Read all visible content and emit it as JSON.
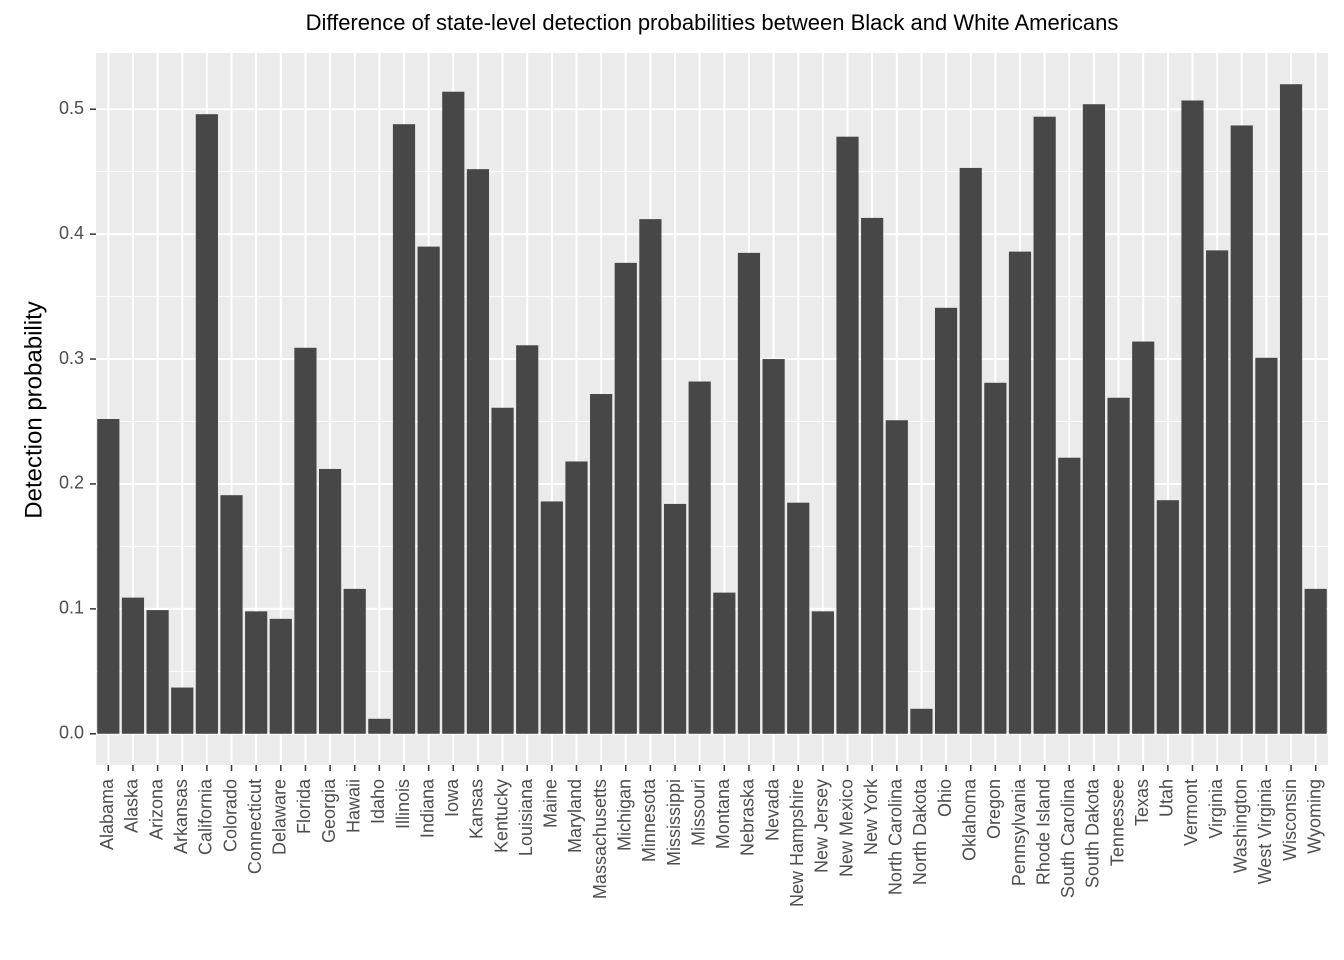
{
  "chart_data": {
    "type": "bar",
    "title": "Difference of state-level detection probabilities between Black and White Americans",
    "xlabel": "",
    "ylabel": "Detection probability",
    "ylim": [
      -0.025,
      0.545
    ],
    "yticks": [
      "0.0",
      "0.1",
      "0.2",
      "0.3",
      "0.4",
      "0.5"
    ],
    "ytick_values": [
      0.0,
      0.1,
      0.2,
      0.3,
      0.4,
      0.5
    ],
    "grid": true,
    "legend": "none",
    "categories": [
      "Alabama",
      "Alaska",
      "Arizona",
      "Arkansas",
      "California",
      "Colorado",
      "Connecticut",
      "Delaware",
      "Florida",
      "Georgia",
      "Hawaii",
      "Idaho",
      "Illinois",
      "Indiana",
      "Iowa",
      "Kansas",
      "Kentucky",
      "Louisiana",
      "Maine",
      "Maryland",
      "Massachusetts",
      "Michigan",
      "Minnesota",
      "Mississippi",
      "Missouri",
      "Montana",
      "Nebraska",
      "Nevada",
      "New Hampshire",
      "New Jersey",
      "New Mexico",
      "New York",
      "North Carolina",
      "North Dakota",
      "Ohio",
      "Oklahoma",
      "Oregon",
      "Pennsylvania",
      "Rhode Island",
      "South Carolina",
      "South Dakota",
      "Tennessee",
      "Texas",
      "Utah",
      "Vermont",
      "Virginia",
      "Washington",
      "West Virginia",
      "Wisconsin",
      "Wyoming"
    ],
    "values": [
      0.252,
      0.109,
      0.099,
      0.037,
      0.496,
      0.191,
      0.098,
      0.092,
      0.309,
      0.212,
      0.116,
      0.012,
      0.488,
      0.39,
      0.514,
      0.452,
      0.261,
      0.311,
      0.186,
      0.218,
      0.272,
      0.377,
      0.412,
      0.184,
      0.282,
      0.113,
      0.385,
      0.3,
      0.185,
      0.098,
      0.478,
      0.413,
      0.251,
      0.02,
      0.341,
      0.453,
      0.281,
      0.386,
      0.494,
      0.221,
      0.504,
      0.269,
      0.314,
      0.187,
      0.507,
      0.387,
      0.487,
      0.301,
      0.52,
      0.116
    ],
    "colors": {
      "bar": "#474747",
      "panel": "#ebebeb",
      "grid_major": "#ffffff",
      "tick": "#333333",
      "tick_label": "#4d4d4d"
    }
  }
}
